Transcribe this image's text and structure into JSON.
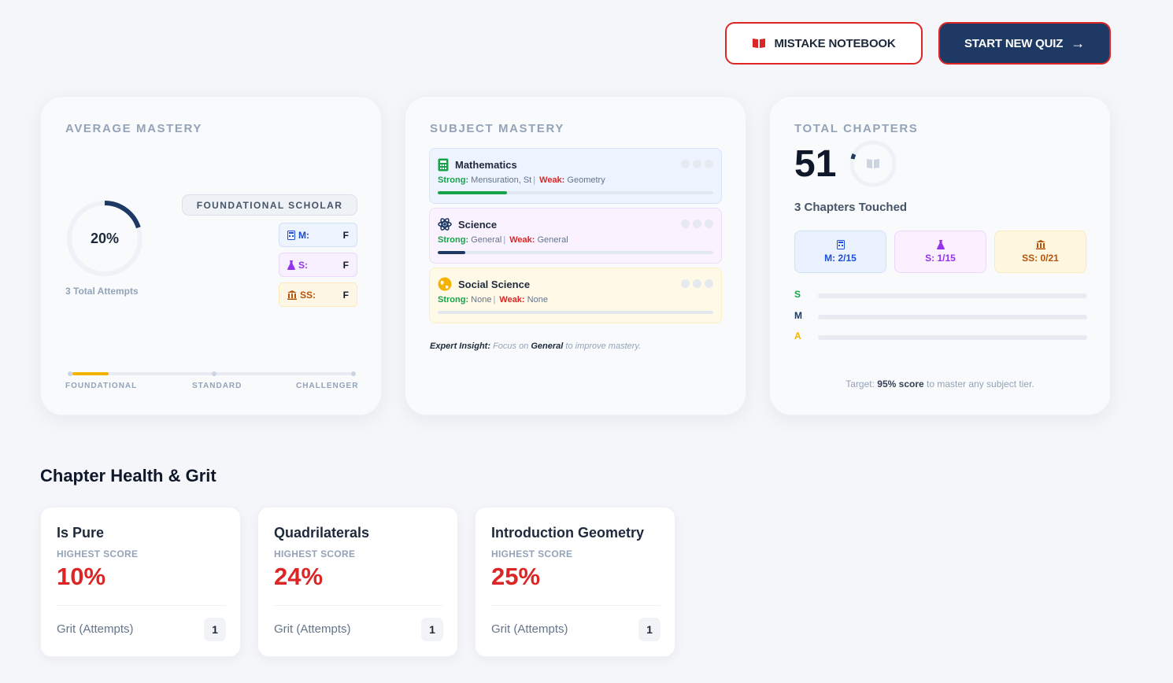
{
  "header": {
    "mistake_label": "MISTAKE NOTEBOOK",
    "start_label": "START NEW QUIZ",
    "start_icon": "→"
  },
  "avg_mastery": {
    "title": "AVERAGE MASTERY",
    "percent_text": "20%",
    "percent_value": 20,
    "attempts": "3 Total Attempts",
    "badge": "FOUNDATIONAL SCHOLAR",
    "grades": [
      {
        "label": "M:",
        "grade": "F"
      },
      {
        "label": "S:",
        "grade": "F"
      },
      {
        "label": "SS:",
        "grade": "F"
      }
    ],
    "tiers": [
      "FOUNDATIONAL",
      "STANDARD",
      "CHALLENGER"
    ]
  },
  "subject_mastery": {
    "title": "SUBJECT MASTERY",
    "strong_label": "Strong:",
    "weak_label": "Weak:",
    "subjects": [
      {
        "name": "Mathematics",
        "strong": "Mensuration, St",
        "weak": "Geometry",
        "progress": 0.25,
        "color": "#16a34a"
      },
      {
        "name": "Science",
        "strong": "General",
        "weak": "General",
        "progress": 0.1,
        "color": "#1e3a64"
      },
      {
        "name": "Social Science",
        "strong": "None",
        "weak": "None",
        "progress": 0,
        "color": "#f5b301"
      }
    ],
    "insight_prefix": "Expert Insight:",
    "insight_mid": " Focus on ",
    "insight_focus": "General",
    "insight_suffix": " to improve mastery."
  },
  "total_chapters": {
    "title": "TOTAL CHAPTERS",
    "count": "51",
    "touched": "3 Chapters Touched",
    "boxes": [
      {
        "label": "M: 2/15"
      },
      {
        "label": "S: 1/15"
      },
      {
        "label": "SS: 0/21"
      }
    ],
    "tier_rows": [
      {
        "letter": "S",
        "color": "#16a34a"
      },
      {
        "letter": "M",
        "color": "#1e3a64"
      },
      {
        "letter": "A",
        "color": "#f5b301"
      }
    ],
    "target_prefix": "Target: ",
    "target_bold": "95% score",
    "target_suffix": " to master any subject tier."
  },
  "chapter_health": {
    "title": "Chapter Health & Grit",
    "score_label": "HIGHEST SCORE",
    "grit_label": "Grit (Attempts)",
    "cards": [
      {
        "name": "Is Pure",
        "score": "10%",
        "attempts": "1"
      },
      {
        "name": "Quadrilaterals",
        "score": "24%",
        "attempts": "1"
      },
      {
        "name": "Introduction Geometry",
        "score": "25%",
        "attempts": "1"
      }
    ]
  },
  "colors": {
    "accent_red": "#dc2626",
    "navy": "#1e3a64",
    "gold": "#f5b301"
  }
}
